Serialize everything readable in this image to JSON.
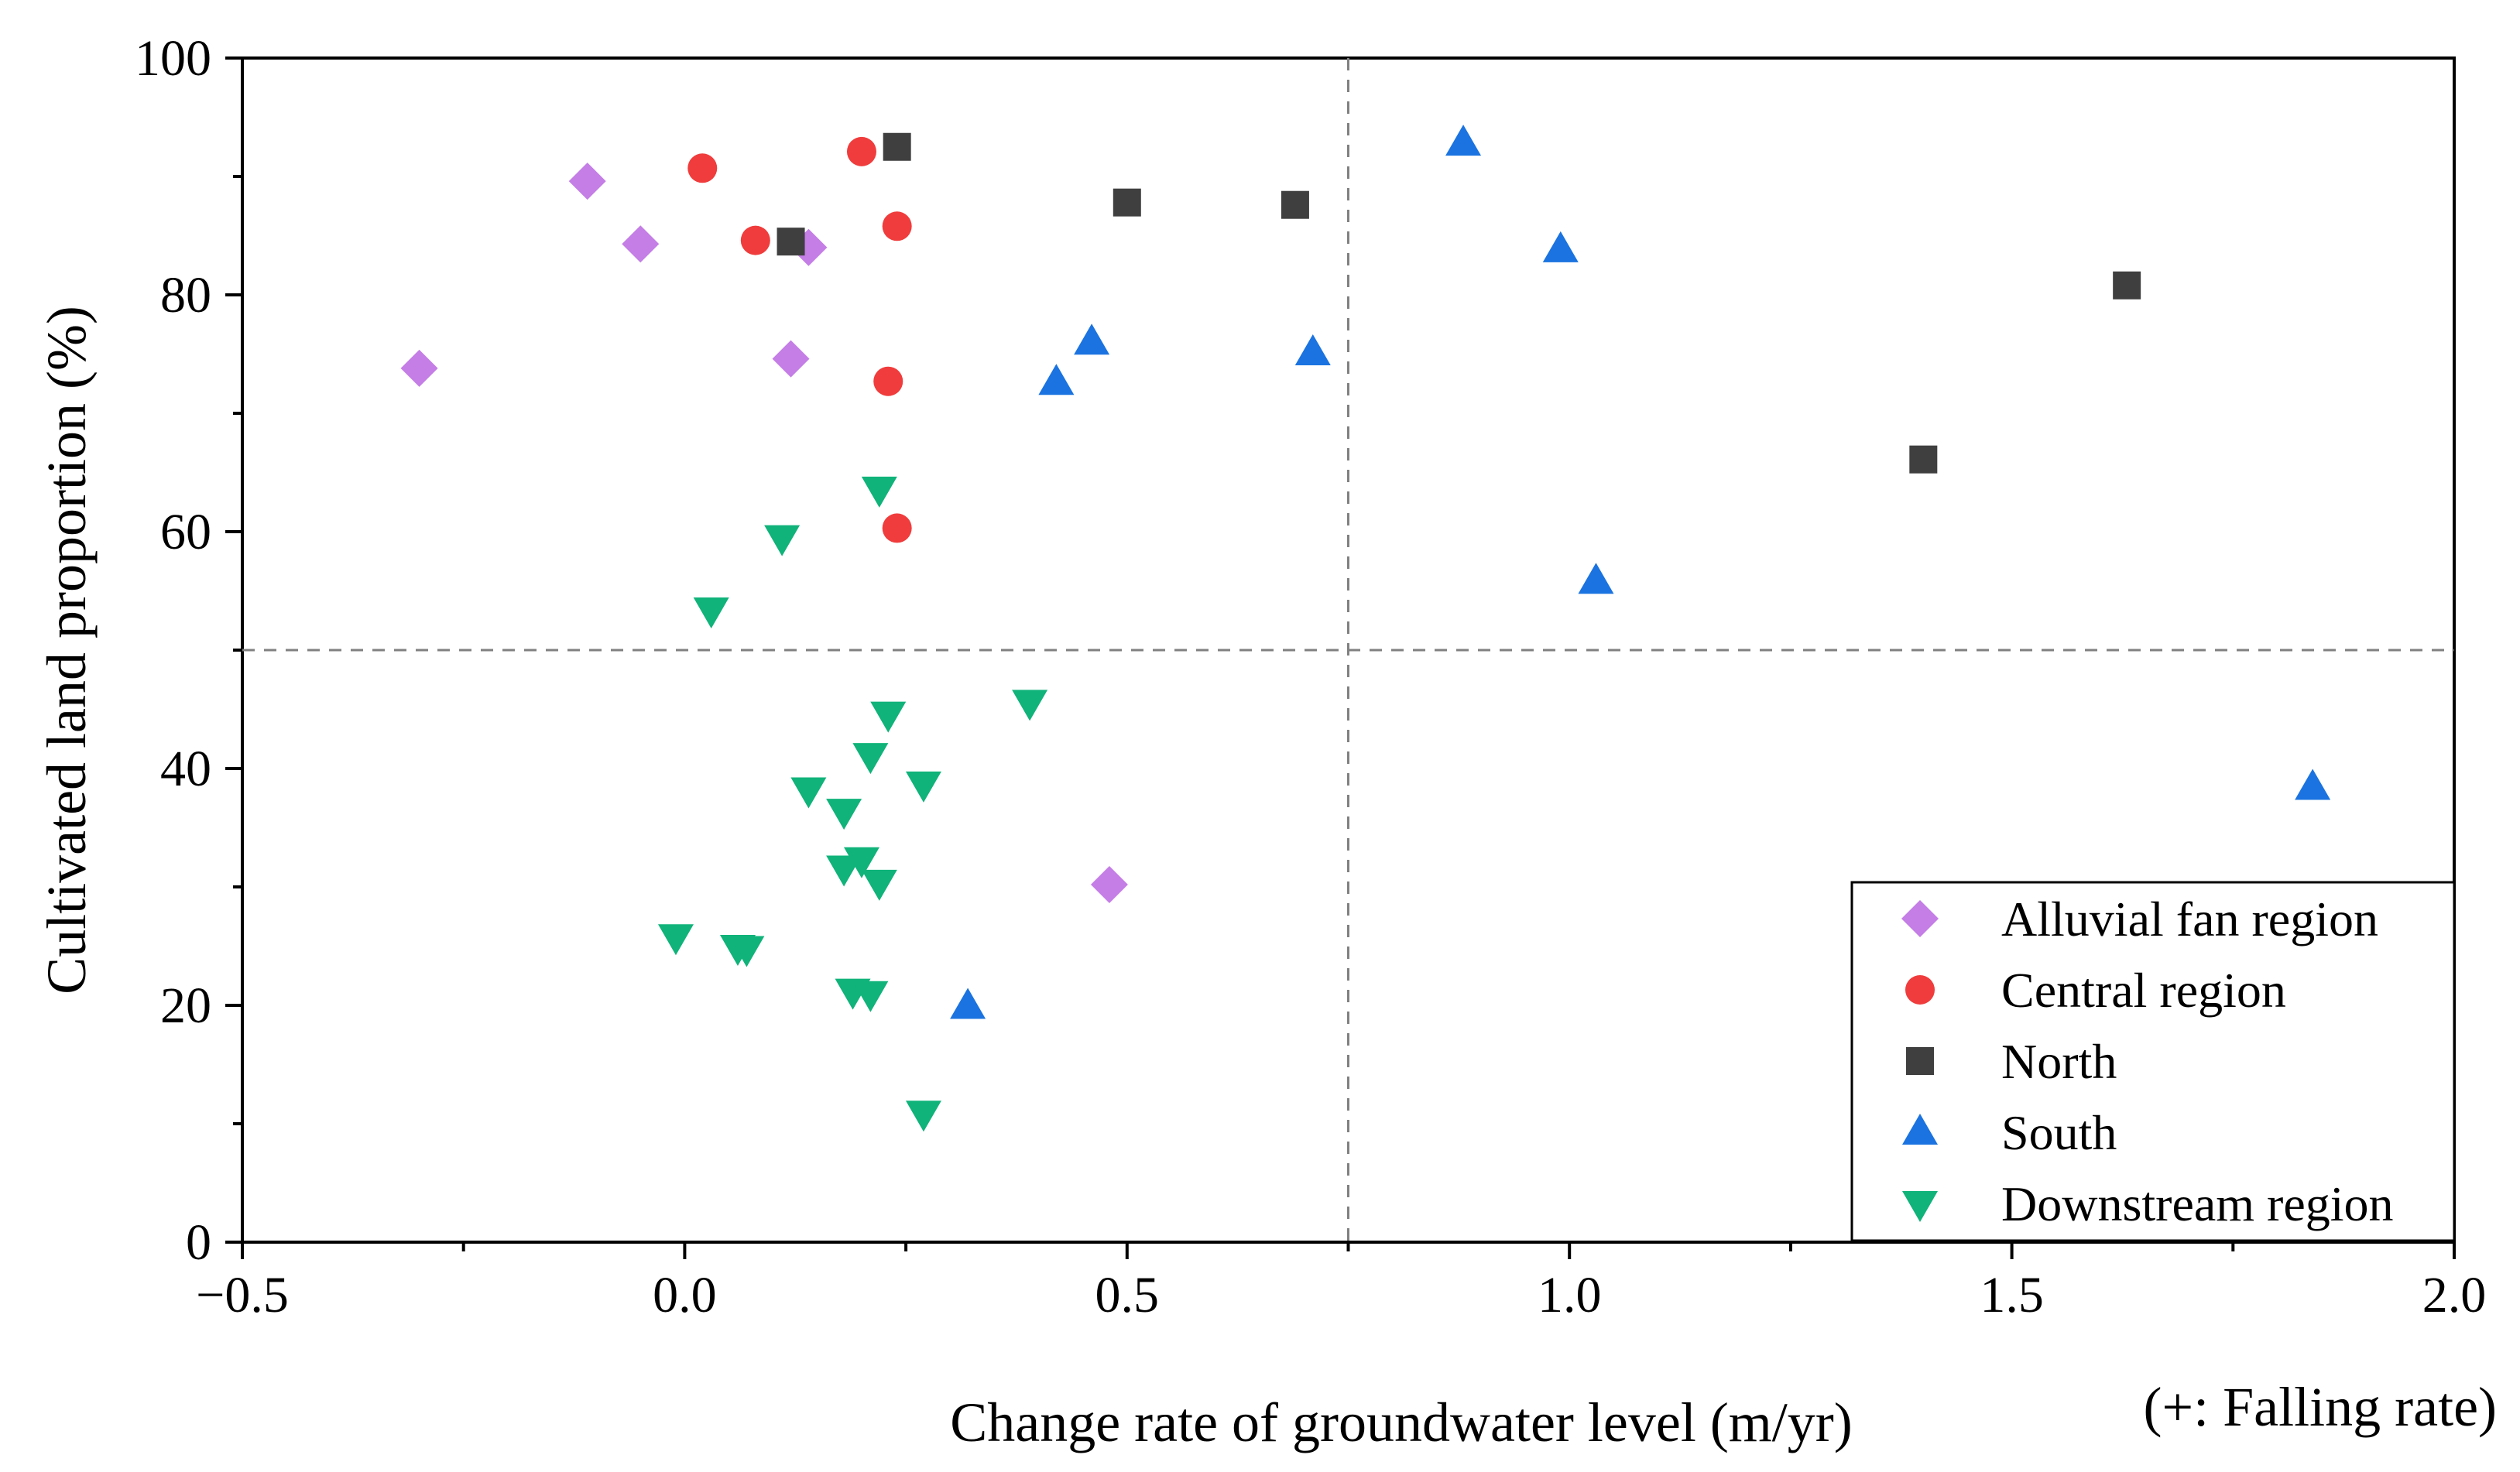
{
  "chart_data": {
    "type": "scatter",
    "title": "",
    "xlabel": "Change rate of groundwater level (m/yr)",
    "xlabel_note": "(+: Falling rate)",
    "ylabel": "Cultivated land proportion (%)",
    "xlim": [
      -0.5,
      2.0
    ],
    "ylim": [
      0,
      100
    ],
    "x_ticks": [
      -0.5,
      0.0,
      0.5,
      1.0,
      1.5,
      2.0
    ],
    "x_tick_labels": [
      "−0.5",
      "0.0",
      "0.5",
      "1.0",
      "1.5",
      "2.0"
    ],
    "y_ticks": [
      0,
      20,
      40,
      60,
      80,
      100
    ],
    "y_tick_labels": [
      "0",
      "20",
      "40",
      "60",
      "80",
      "100"
    ],
    "grid": false,
    "reference_lines": {
      "x": 0.75,
      "y": 50
    },
    "legend_position": "bottom-right",
    "series": [
      {
        "name": "Alluvial fan region",
        "marker": "diamond",
        "color": "#c47ee6",
        "points": [
          [
            -0.3,
            73.8
          ],
          [
            -0.11,
            89.6
          ],
          [
            -0.05,
            84.3
          ],
          [
            0.12,
            74.6
          ],
          [
            0.14,
            84.0
          ],
          [
            0.48,
            30.2
          ]
        ]
      },
      {
        "name": "Central region",
        "marker": "circle",
        "color": "#f03c3c",
        "points": [
          [
            0.02,
            90.7
          ],
          [
            0.08,
            84.6
          ],
          [
            0.2,
            92.1
          ],
          [
            0.24,
            85.8
          ],
          [
            0.23,
            72.7
          ],
          [
            0.24,
            60.3
          ]
        ]
      },
      {
        "name": "North",
        "marker": "square",
        "color": "#3f3f3f",
        "points": [
          [
            0.12,
            84.5
          ],
          [
            0.24,
            92.5
          ],
          [
            0.5,
            87.8
          ],
          [
            0.69,
            87.6
          ],
          [
            1.4,
            66.1
          ],
          [
            1.63,
            80.8
          ]
        ]
      },
      {
        "name": "South",
        "marker": "triangle-up",
        "color": "#1a73e0",
        "points": [
          [
            0.32,
            19.9
          ],
          [
            0.42,
            72.6
          ],
          [
            0.46,
            76.0
          ],
          [
            0.71,
            75.1
          ],
          [
            0.88,
            92.8
          ],
          [
            0.99,
            83.8
          ],
          [
            1.03,
            55.8
          ],
          [
            1.84,
            38.4
          ]
        ]
      },
      {
        "name": "Downstream region",
        "marker": "triangle-down",
        "color": "#10b37a",
        "points": [
          [
            -0.01,
            25.8
          ],
          [
            0.03,
            53.4
          ],
          [
            0.06,
            24.9
          ],
          [
            0.07,
            24.8
          ],
          [
            0.11,
            59.5
          ],
          [
            0.14,
            38.2
          ],
          [
            0.18,
            36.4
          ],
          [
            0.18,
            31.6
          ],
          [
            0.19,
            21.2
          ],
          [
            0.2,
            32.3
          ],
          [
            0.21,
            21.0
          ],
          [
            0.21,
            41.1
          ],
          [
            0.22,
            63.6
          ],
          [
            0.22,
            30.4
          ],
          [
            0.23,
            44.6
          ],
          [
            0.27,
            10.9
          ],
          [
            0.27,
            38.7
          ],
          [
            0.39,
            45.6
          ]
        ]
      }
    ]
  }
}
